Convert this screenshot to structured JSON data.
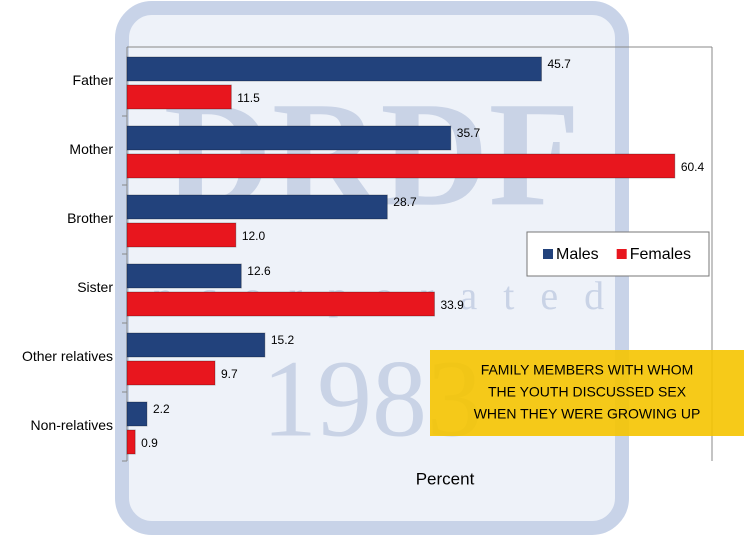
{
  "chart_data": {
    "type": "barh",
    "categories": [
      "Father",
      "Mother",
      "Brother",
      "Sister",
      "Other relatives",
      "Non-relatives"
    ],
    "series": [
      {
        "name": "Males",
        "color": "#22427c",
        "values": [
          45.7,
          35.7,
          28.7,
          12.6,
          15.2,
          2.2
        ],
        "value_labels": [
          "45.7",
          "35.7",
          "28.7",
          "12.6",
          "15.2",
          "2.2"
        ]
      },
      {
        "name": "Females",
        "color": "#e8161e",
        "values": [
          11.5,
          60.4,
          12.0,
          33.9,
          9.7,
          0.9
        ],
        "value_labels": [
          "11.5",
          "60.4",
          "12.0",
          "33.9",
          "9.7",
          "0.9"
        ]
      }
    ],
    "xlim": [
      0,
      64.5
    ],
    "xlabel": "Percent",
    "legend": "right",
    "annotation": [
      "FAMILY MEMBERS WITH WHOM",
      "THE YOUTH DISCUSSED SEX",
      "WHEN THEY WERE GROWING UP"
    ],
    "watermark": [
      "DRDF",
      "Incorporated",
      "1983"
    ]
  }
}
